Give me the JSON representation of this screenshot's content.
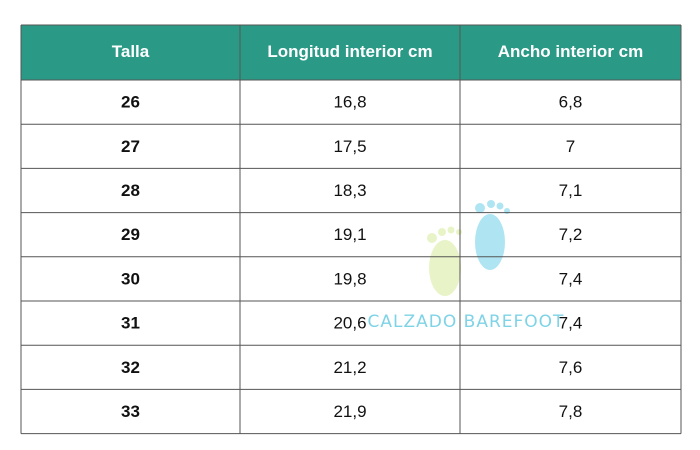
{
  "table": {
    "header": [
      "Talla",
      "Longitud interior cm",
      "Ancho interior cm"
    ],
    "rows": [
      [
        "26",
        "16,8",
        "6,8"
      ],
      [
        "27",
        "17,5",
        "7"
      ],
      [
        "28",
        "18,3",
        "7,1"
      ],
      [
        "29",
        "19,1",
        "7,2"
      ],
      [
        "30",
        "19,8",
        "7,4"
      ],
      [
        "31",
        "20,6",
        "7,4"
      ],
      [
        "32",
        "21,2",
        "7,6"
      ],
      [
        "33",
        "21,9",
        "7,8"
      ]
    ]
  },
  "watermark": "CALZADO BAREFOOT"
}
